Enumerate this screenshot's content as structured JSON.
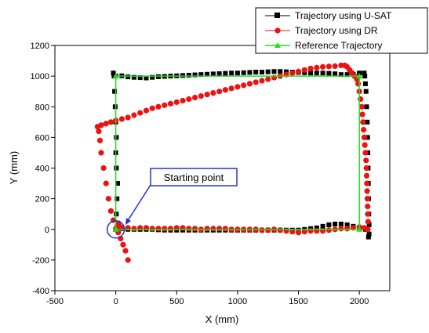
{
  "chart_data": {
    "type": "scatter",
    "xlabel": "X (mm)",
    "ylabel": "Y (mm)",
    "xlim": [
      -500,
      2250
    ],
    "ylim": [
      -400,
      1200
    ],
    "xticks": [
      -500,
      0,
      500,
      1000,
      1500,
      2000
    ],
    "yticks": [
      -400,
      -200,
      0,
      200,
      400,
      600,
      800,
      1000,
      1200
    ],
    "grid": false,
    "legend_position": "top-right",
    "annotation": {
      "text": "Starting point",
      "x": 0,
      "y": 0
    },
    "series": [
      {
        "name": "Trajectory using U-SAT",
        "marker": "square",
        "color": "#000000",
        "points": [
          [
            0,
            0
          ],
          [
            5,
            100
          ],
          [
            10,
            200
          ],
          [
            15,
            300
          ],
          [
            5,
            400
          ],
          [
            0,
            500
          ],
          [
            5,
            600
          ],
          [
            0,
            700
          ],
          [
            -5,
            800
          ],
          [
            -10,
            900
          ],
          [
            -15,
            1000
          ],
          [
            -20,
            1020
          ],
          [
            0,
            1000
          ],
          [
            50,
            1002
          ],
          [
            100,
            995
          ],
          [
            150,
            992
          ],
          [
            200,
            990
          ],
          [
            250,
            988
          ],
          [
            300,
            992
          ],
          [
            350,
            996
          ],
          [
            400,
            998
          ],
          [
            450,
            1000
          ],
          [
            500,
            1002
          ],
          [
            550,
            1004
          ],
          [
            600,
            1006
          ],
          [
            650,
            1008
          ],
          [
            700,
            1010
          ],
          [
            750,
            1012
          ],
          [
            800,
            1014
          ],
          [
            850,
            1016
          ],
          [
            900,
            1018
          ],
          [
            950,
            1020
          ],
          [
            1000,
            1020
          ],
          [
            1050,
            1022
          ],
          [
            1100,
            1024
          ],
          [
            1150,
            1026
          ],
          [
            1200,
            1026
          ],
          [
            1250,
            1028
          ],
          [
            1300,
            1030
          ],
          [
            1350,
            1030
          ],
          [
            1400,
            1028
          ],
          [
            1450,
            1026
          ],
          [
            1500,
            1024
          ],
          [
            1550,
            1022
          ],
          [
            1600,
            1020
          ],
          [
            1650,
            1020
          ],
          [
            1700,
            1020
          ],
          [
            1750,
            1018
          ],
          [
            1800,
            1015
          ],
          [
            1850,
            1010
          ],
          [
            1900,
            1010
          ],
          [
            1950,
            1012
          ],
          [
            2000,
            1020
          ],
          [
            2040,
            1020
          ],
          [
            2045,
            1000
          ],
          [
            2050,
            950
          ],
          [
            2055,
            900
          ],
          [
            2060,
            800
          ],
          [
            2065,
            700
          ],
          [
            2068,
            600
          ],
          [
            2070,
            500
          ],
          [
            2072,
            400
          ],
          [
            2074,
            300
          ],
          [
            2076,
            200
          ],
          [
            2078,
            100
          ],
          [
            2080,
            30
          ],
          [
            2080,
            -30
          ],
          [
            2075,
            -50
          ],
          [
            2050,
            0
          ],
          [
            2000,
            10
          ],
          [
            1950,
            20
          ],
          [
            1900,
            30
          ],
          [
            1850,
            35
          ],
          [
            1800,
            35
          ],
          [
            1750,
            30
          ],
          [
            1700,
            20
          ],
          [
            1650,
            10
          ],
          [
            1600,
            5
          ],
          [
            1550,
            0
          ],
          [
            1500,
            -5
          ],
          [
            1450,
            -5
          ],
          [
            1400,
            -5
          ],
          [
            1350,
            -5
          ],
          [
            1300,
            -5
          ],
          [
            1250,
            -5
          ],
          [
            1200,
            -5
          ],
          [
            1150,
            -5
          ],
          [
            1100,
            -5
          ],
          [
            1050,
            -5
          ],
          [
            1000,
            -5
          ],
          [
            950,
            -5
          ],
          [
            900,
            -5
          ],
          [
            850,
            -5
          ],
          [
            800,
            -5
          ],
          [
            750,
            -5
          ],
          [
            700,
            -5
          ],
          [
            650,
            -5
          ],
          [
            600,
            -5
          ],
          [
            550,
            -5
          ],
          [
            500,
            -5
          ],
          [
            450,
            -5
          ],
          [
            400,
            -5
          ],
          [
            350,
            -3
          ],
          [
            300,
            0
          ],
          [
            250,
            0
          ],
          [
            200,
            0
          ],
          [
            150,
            0
          ],
          [
            100,
            0
          ],
          [
            50,
            5
          ]
        ]
      },
      {
        "name": "Trajectory using DR",
        "marker": "circle",
        "color": "#ee1111",
        "points": [
          [
            0,
            0
          ],
          [
            20,
            -20
          ],
          [
            40,
            -60
          ],
          [
            60,
            -100
          ],
          [
            80,
            -140
          ],
          [
            100,
            -200
          ],
          [
            -20,
            60
          ],
          [
            -40,
            120
          ],
          [
            -60,
            200
          ],
          [
            -80,
            300
          ],
          [
            -100,
            400
          ],
          [
            -120,
            500
          ],
          [
            -130,
            580
          ],
          [
            -140,
            640
          ],
          [
            -150,
            670
          ],
          [
            -120,
            680
          ],
          [
            -80,
            690
          ],
          [
            -40,
            700
          ],
          [
            0,
            710
          ],
          [
            50,
            720
          ],
          [
            100,
            730
          ],
          [
            150,
            745
          ],
          [
            200,
            760
          ],
          [
            250,
            775
          ],
          [
            300,
            790
          ],
          [
            350,
            800
          ],
          [
            400,
            810
          ],
          [
            450,
            820
          ],
          [
            500,
            830
          ],
          [
            550,
            840
          ],
          [
            600,
            850
          ],
          [
            650,
            860
          ],
          [
            700,
            870
          ],
          [
            750,
            880
          ],
          [
            800,
            890
          ],
          [
            850,
            900
          ],
          [
            900,
            910
          ],
          [
            950,
            920
          ],
          [
            1000,
            930
          ],
          [
            1050,
            940
          ],
          [
            1100,
            950
          ],
          [
            1150,
            960
          ],
          [
            1200,
            970
          ],
          [
            1250,
            980
          ],
          [
            1300,
            990
          ],
          [
            1350,
            1000
          ],
          [
            1400,
            1010
          ],
          [
            1450,
            1020
          ],
          [
            1500,
            1030
          ],
          [
            1550,
            1040
          ],
          [
            1600,
            1050
          ],
          [
            1650,
            1055
          ],
          [
            1700,
            1060
          ],
          [
            1750,
            1063
          ],
          [
            1800,
            1065
          ],
          [
            1850,
            1070
          ],
          [
            1880,
            1070
          ],
          [
            1900,
            1060
          ],
          [
            1920,
            1040
          ],
          [
            1940,
            1020
          ],
          [
            1960,
            1000
          ],
          [
            1980,
            980
          ],
          [
            1990,
            950
          ],
          [
            2000,
            900
          ],
          [
            2010,
            850
          ],
          [
            2020,
            800
          ],
          [
            2025,
            750
          ],
          [
            2030,
            700
          ],
          [
            2035,
            650
          ],
          [
            2040,
            600
          ],
          [
            2045,
            550
          ],
          [
            2050,
            500
          ],
          [
            2055,
            450
          ],
          [
            2058,
            400
          ],
          [
            2060,
            350
          ],
          [
            2062,
            300
          ],
          [
            2064,
            250
          ],
          [
            2066,
            200
          ],
          [
            2068,
            150
          ],
          [
            2070,
            100
          ],
          [
            2072,
            50
          ],
          [
            2070,
            0
          ],
          [
            2040,
            10
          ],
          [
            2000,
            15
          ],
          [
            1950,
            10
          ],
          [
            1900,
            5
          ],
          [
            1850,
            5
          ],
          [
            1800,
            0
          ],
          [
            1750,
            -5
          ],
          [
            1700,
            -10
          ],
          [
            1650,
            -10
          ],
          [
            1600,
            -10
          ],
          [
            1550,
            -15
          ],
          [
            1500,
            -20
          ],
          [
            1450,
            -15
          ],
          [
            1400,
            -10
          ],
          [
            1350,
            -5
          ],
          [
            1300,
            0
          ],
          [
            1250,
            -5
          ],
          [
            1200,
            -5
          ],
          [
            1150,
            0
          ],
          [
            1100,
            0
          ],
          [
            1050,
            0
          ],
          [
            1000,
            0
          ],
          [
            950,
            0
          ],
          [
            900,
            5
          ],
          [
            850,
            5
          ],
          [
            800,
            5
          ],
          [
            750,
            5
          ],
          [
            700,
            0
          ],
          [
            650,
            5
          ],
          [
            600,
            5
          ],
          [
            550,
            10
          ],
          [
            500,
            10
          ],
          [
            450,
            5
          ],
          [
            400,
            5
          ],
          [
            350,
            5
          ],
          [
            300,
            5
          ],
          [
            250,
            10
          ],
          [
            200,
            10
          ],
          [
            150,
            5
          ],
          [
            100,
            10
          ],
          [
            50,
            10
          ],
          [
            30,
            20
          ],
          [
            20,
            40
          ],
          [
            10,
            20
          ]
        ]
      },
      {
        "name": "Reference Trajectory",
        "marker": "triangle",
        "color": "#22dd22",
        "points": [
          [
            0,
            0
          ],
          [
            0,
            1000
          ],
          [
            2000,
            1000
          ],
          [
            2000,
            0
          ],
          [
            0,
            0
          ]
        ]
      }
    ]
  }
}
